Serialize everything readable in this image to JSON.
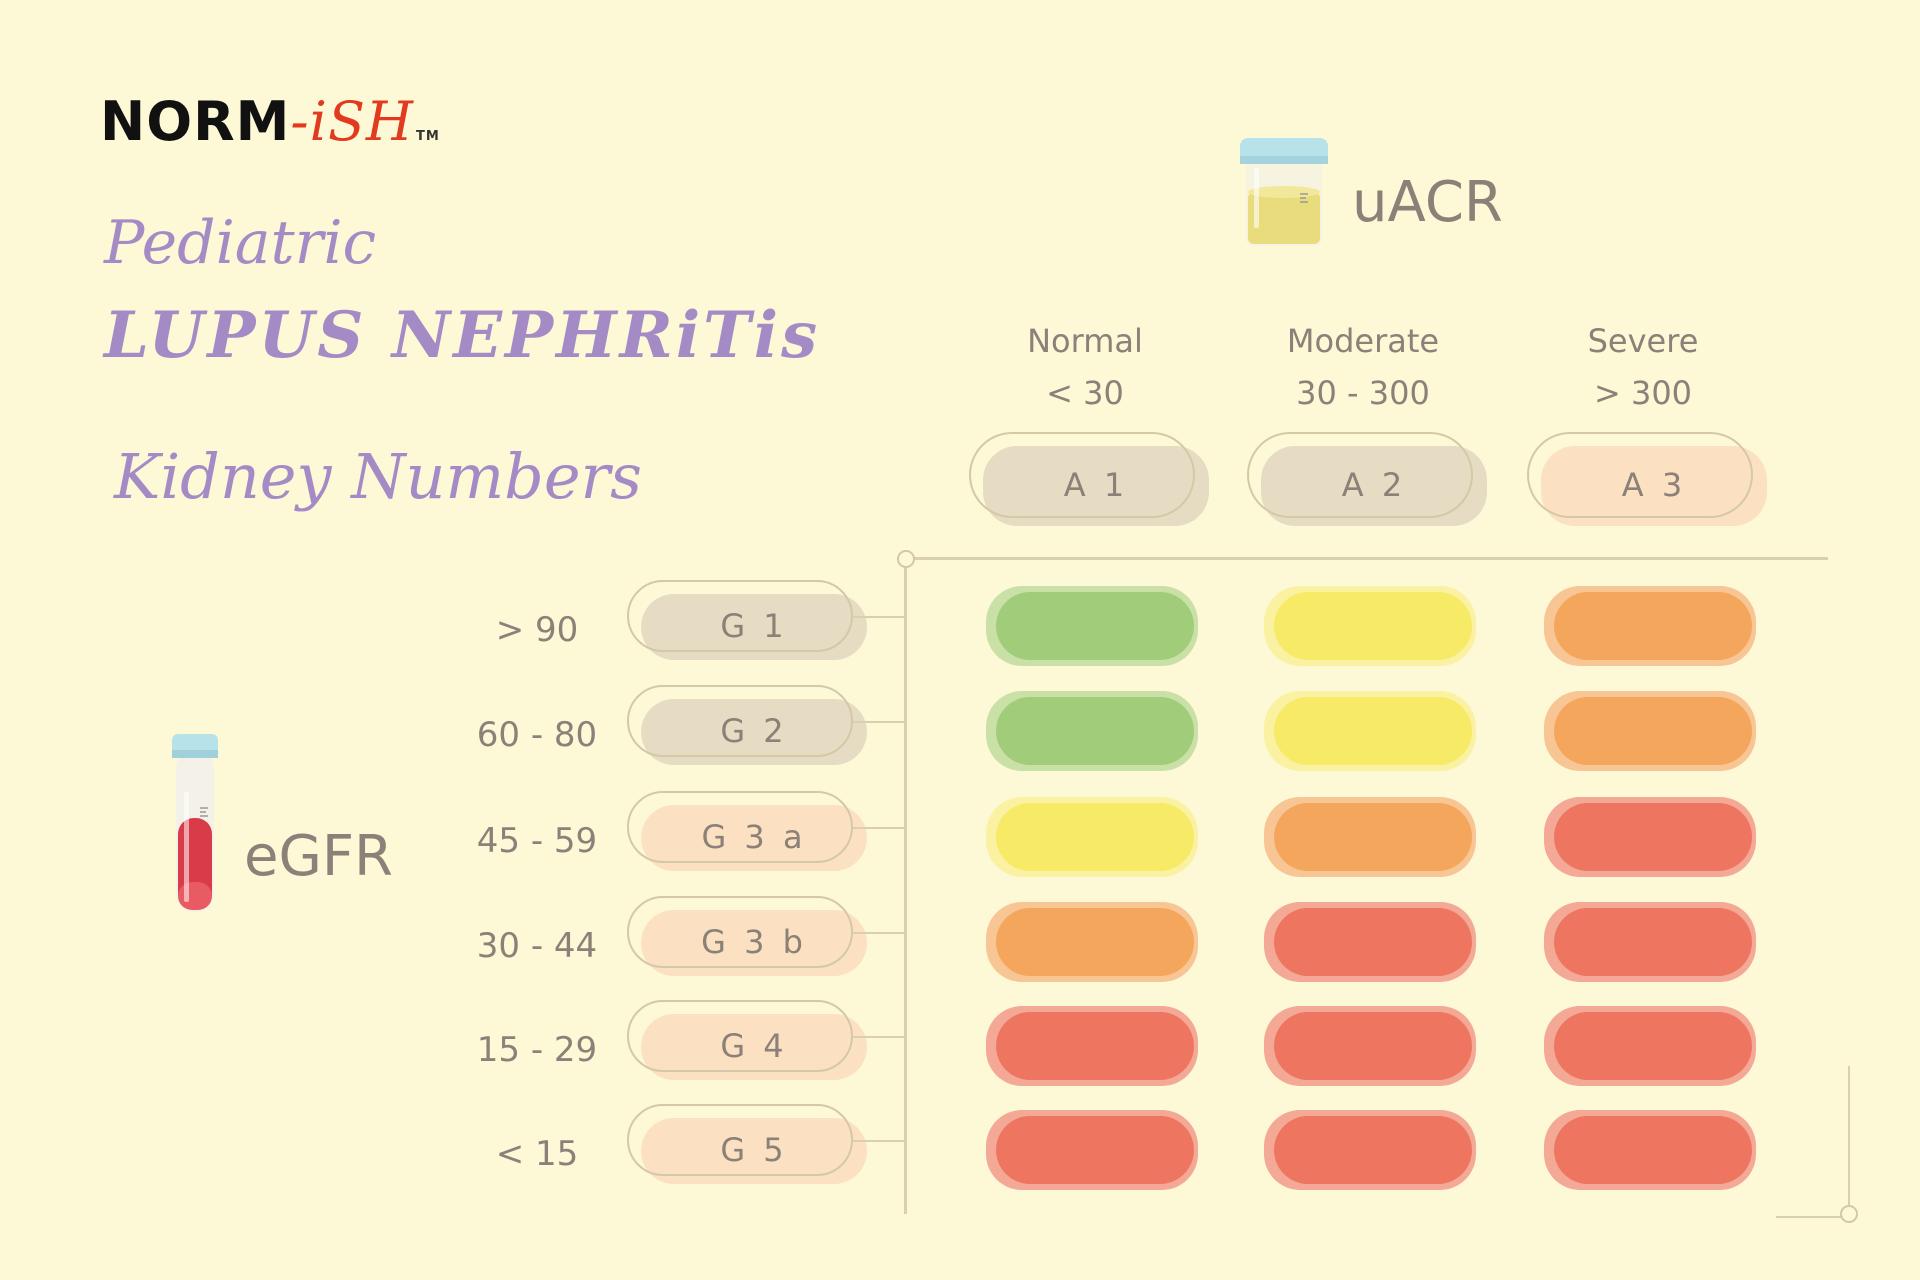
{
  "brand": {
    "name": "NORM",
    "suffix": "-iSH",
    "tm": "TM"
  },
  "title": {
    "line1": "Pediatric",
    "line2": "LUPUS NEPHRiTis",
    "line3": "Kidney Numbers"
  },
  "uacr": {
    "label": "uACR",
    "columns": [
      {
        "name": "Normal",
        "range": "< 30",
        "code": "A 1",
        "tint": "#e5dcc3"
      },
      {
        "name": "Moderate",
        "range": "30 - 300",
        "code": "A 2",
        "tint": "#e5dcc3"
      },
      {
        "name": "Severe",
        "range": "> 300",
        "code": "A 3",
        "tint": "#fbe1c1"
      }
    ]
  },
  "egfr": {
    "label": "eGFR",
    "rows": [
      {
        "range": "> 90",
        "code": "G 1",
        "tint": "#e5dcc3"
      },
      {
        "range": "60 - 80",
        "code": "G 2",
        "tint": "#e5dcc3"
      },
      {
        "range": "45 - 59",
        "code": "G 3 a",
        "tint": "#fbe1c1"
      },
      {
        "range": "30 - 44",
        "code": "G 3 b",
        "tint": "#fbe1c1"
      },
      {
        "range": "15 - 29",
        "code": "G 4",
        "tint": "#fbe1c1"
      },
      {
        "range": "< 15",
        "code": "G 5",
        "tint": "#fbe1c1"
      }
    ]
  },
  "risk_levels": {
    "green": {
      "main": "#a1cc7a",
      "shadow": "#c9e0a6"
    },
    "yellow": {
      "main": "#f6ea66",
      "shadow": "#faf2a2"
    },
    "orange": {
      "main": "#f4a65d",
      "shadow": "#f8c595"
    },
    "red": {
      "main": "#ee7660",
      "shadow": "#f4a896"
    }
  },
  "grid": [
    [
      "green",
      "yellow",
      "orange"
    ],
    [
      "green",
      "yellow",
      "orange"
    ],
    [
      "yellow",
      "orange",
      "red"
    ],
    [
      "orange",
      "red",
      "red"
    ],
    [
      "red",
      "red",
      "red"
    ],
    [
      "red",
      "red",
      "red"
    ]
  ]
}
